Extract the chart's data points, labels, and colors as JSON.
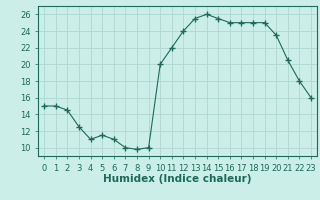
{
  "x": [
    0,
    1,
    2,
    3,
    4,
    5,
    6,
    7,
    8,
    9,
    10,
    11,
    12,
    13,
    14,
    15,
    16,
    17,
    18,
    19,
    20,
    21,
    22,
    23
  ],
  "y": [
    15,
    15,
    14.5,
    12.5,
    11,
    11.5,
    11,
    10,
    9.8,
    10,
    20,
    22,
    24,
    25.5,
    26,
    25.5,
    25,
    25,
    25,
    25,
    23.5,
    20.5,
    18,
    16
  ],
  "line_color": "#1a6b5a",
  "marker": "+",
  "marker_size": 4,
  "bg_color": "#cceee8",
  "grid_color": "#b0d8d0",
  "xlabel": "Humidex (Indice chaleur)",
  "xlabel_fontsize": 7.5,
  "ylabel_ticks": [
    10,
    12,
    14,
    16,
    18,
    20,
    22,
    24,
    26
  ],
  "xtick_labels": [
    "0",
    "1",
    "2",
    "3",
    "4",
    "5",
    "6",
    "7",
    "8",
    "9",
    "10",
    "11",
    "12",
    "13",
    "14",
    "15",
    "16",
    "17",
    "18",
    "19",
    "20",
    "21",
    "22",
    "23"
  ],
  "ylim": [
    9,
    27
  ],
  "xlim": [
    -0.5,
    23.5
  ],
  "tick_fontsize": 6
}
